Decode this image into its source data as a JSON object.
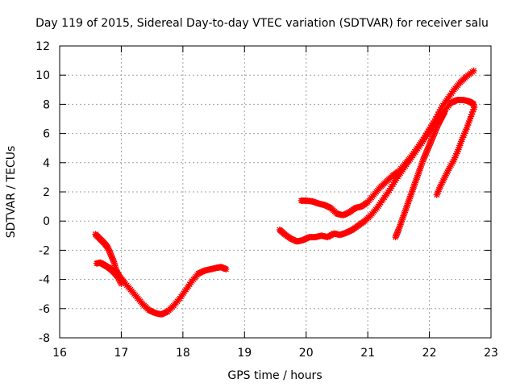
{
  "chart_data": {
    "type": "scatter",
    "title": "Day 119 of 2015, Sidereal Day-to-day VTEC variation (SDTVAR) for receiver salu",
    "xlabel": "GPS time / hours",
    "ylabel": "SDTVAR / TECUs",
    "xlim": [
      16,
      23
    ],
    "ylim": [
      -8,
      12
    ],
    "xticks": [
      16,
      17,
      18,
      19,
      20,
      21,
      22,
      23
    ],
    "yticks": [
      -8,
      -6,
      -4,
      -2,
      0,
      2,
      4,
      6,
      8,
      10,
      12
    ],
    "grid": true,
    "legend": "none",
    "marker": "plus-star",
    "color": "#ff0000",
    "series": [
      {
        "points": [
          [
            16.58,
            -0.9
          ],
          [
            16.65,
            -1.2
          ],
          [
            16.72,
            -1.5
          ],
          [
            16.78,
            -1.8
          ],
          [
            16.83,
            -2.3
          ],
          [
            16.88,
            -2.8
          ],
          [
            16.92,
            -3.4
          ],
          [
            16.97,
            -3.8
          ],
          [
            17.05,
            -4.2
          ],
          [
            17.15,
            -4.7
          ],
          [
            17.25,
            -5.2
          ],
          [
            17.35,
            -5.7
          ],
          [
            17.45,
            -6.1
          ],
          [
            17.55,
            -6.3
          ],
          [
            17.65,
            -6.4
          ],
          [
            17.75,
            -6.2
          ],
          [
            17.85,
            -5.8
          ],
          [
            17.95,
            -5.3
          ],
          [
            18.05,
            -4.7
          ],
          [
            18.15,
            -4.1
          ],
          [
            18.25,
            -3.6
          ],
          [
            18.35,
            -3.4
          ],
          [
            18.45,
            -3.3
          ],
          [
            18.55,
            -3.2
          ],
          [
            18.62,
            -3.15
          ],
          [
            18.7,
            -3.3
          ]
        ]
      },
      {
        "points": [
          [
            16.6,
            -2.9
          ],
          [
            16.66,
            -2.85
          ],
          [
            16.72,
            -3.0
          ],
          [
            16.78,
            -3.15
          ],
          [
            16.83,
            -3.3
          ],
          [
            16.88,
            -3.5
          ],
          [
            16.94,
            -3.8
          ],
          [
            17.0,
            -4.3
          ]
        ]
      },
      {
        "points": [
          [
            19.57,
            -0.6
          ],
          [
            19.65,
            -0.9
          ],
          [
            19.75,
            -1.2
          ],
          [
            19.85,
            -1.4
          ],
          [
            19.95,
            -1.3
          ],
          [
            20.05,
            -1.1
          ],
          [
            20.15,
            -1.1
          ],
          [
            20.25,
            -1.0
          ],
          [
            20.35,
            -1.1
          ],
          [
            20.45,
            -0.85
          ],
          [
            20.55,
            -0.95
          ],
          [
            20.65,
            -0.8
          ],
          [
            20.75,
            -0.6
          ],
          [
            20.85,
            -0.3
          ],
          [
            20.95,
            0.0
          ],
          [
            21.05,
            0.4
          ],
          [
            21.15,
            0.9
          ],
          [
            21.25,
            1.5
          ],
          [
            21.35,
            2.1
          ],
          [
            21.45,
            2.8
          ],
          [
            21.55,
            3.4
          ],
          [
            21.65,
            4.0
          ],
          [
            21.75,
            4.6
          ],
          [
            21.85,
            5.2
          ],
          [
            21.95,
            5.8
          ],
          [
            22.05,
            6.4
          ],
          [
            22.15,
            7.0
          ],
          [
            22.25,
            7.6
          ],
          [
            22.35,
            8.1
          ],
          [
            22.45,
            8.3
          ],
          [
            22.55,
            8.3
          ],
          [
            22.65,
            8.2
          ],
          [
            22.72,
            8.0
          ]
        ]
      },
      {
        "points": [
          [
            19.92,
            1.4
          ],
          [
            20.0,
            1.4
          ],
          [
            20.1,
            1.35
          ],
          [
            20.2,
            1.2
          ],
          [
            20.3,
            1.1
          ],
          [
            20.4,
            0.9
          ],
          [
            20.5,
            0.5
          ],
          [
            20.6,
            0.4
          ],
          [
            20.7,
            0.6
          ],
          [
            20.8,
            0.9
          ],
          [
            20.9,
            1.0
          ],
          [
            21.0,
            1.3
          ],
          [
            21.1,
            1.8
          ],
          [
            21.2,
            2.3
          ],
          [
            21.3,
            2.7
          ],
          [
            21.4,
            3.1
          ],
          [
            21.5,
            3.4
          ],
          [
            21.6,
            3.9
          ],
          [
            21.7,
            4.4
          ],
          [
            21.8,
            5.0
          ],
          [
            21.9,
            5.6
          ],
          [
            22.0,
            6.3
          ],
          [
            22.1,
            7.0
          ],
          [
            22.2,
            7.8
          ],
          [
            22.3,
            8.4
          ],
          [
            22.4,
            9.0
          ],
          [
            22.5,
            9.5
          ],
          [
            22.6,
            9.9
          ],
          [
            22.72,
            10.3
          ]
        ]
      },
      {
        "points": [
          [
            21.45,
            -1.1
          ],
          [
            21.5,
            -0.6
          ],
          [
            21.55,
            0.0
          ],
          [
            21.6,
            0.6
          ],
          [
            21.65,
            1.2
          ],
          [
            21.7,
            1.8
          ],
          [
            21.75,
            2.4
          ],
          [
            21.8,
            3.0
          ],
          [
            21.85,
            3.6
          ],
          [
            21.9,
            4.2
          ],
          [
            21.95,
            4.7
          ],
          [
            22.0,
            5.2
          ],
          [
            22.05,
            5.7
          ],
          [
            22.1,
            6.2
          ],
          [
            22.15,
            6.7
          ],
          [
            22.2,
            7.1
          ],
          [
            22.25,
            7.5
          ]
        ]
      },
      {
        "points": [
          [
            22.12,
            1.8
          ],
          [
            22.18,
            2.4
          ],
          [
            22.25,
            3.0
          ],
          [
            22.32,
            3.6
          ],
          [
            22.4,
            4.2
          ],
          [
            22.47,
            4.9
          ],
          [
            22.53,
            5.6
          ],
          [
            22.6,
            6.3
          ],
          [
            22.66,
            7.0
          ],
          [
            22.73,
            7.8
          ]
        ]
      }
    ]
  }
}
